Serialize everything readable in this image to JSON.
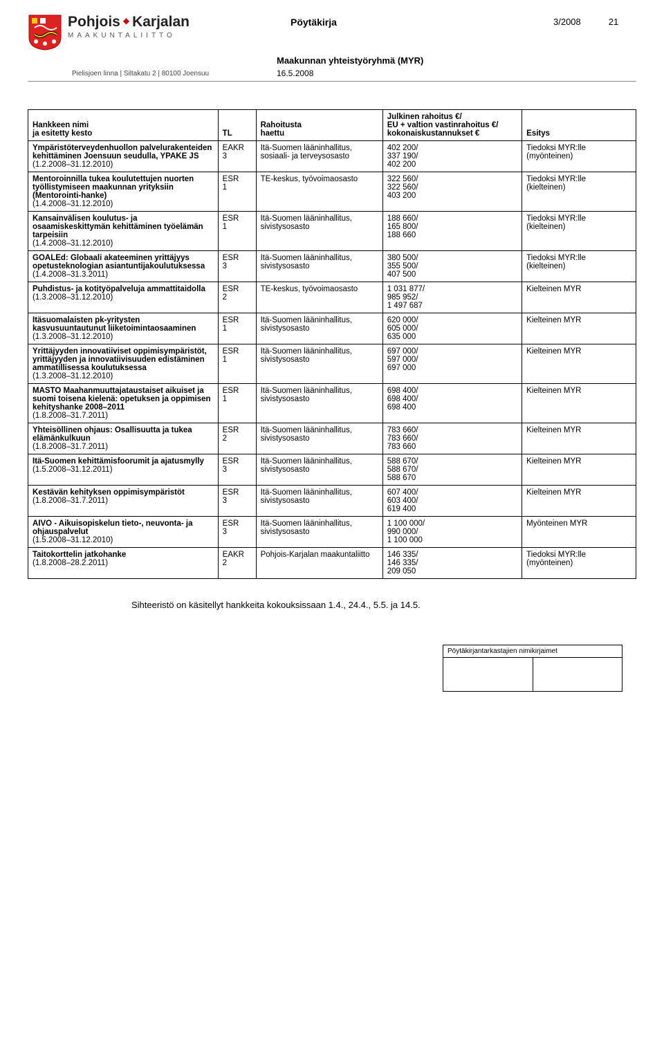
{
  "header": {
    "org_name_1": "Pohjois",
    "org_name_2": "Karjalan",
    "org_sub": "MAAKUNTALIITTO",
    "doc_type": "Pöytäkirja",
    "doc_num": "3/2008",
    "page_num": "21",
    "group": "Maakunnan yhteistyöryhmä (MYR)",
    "address": "Pielisjoen linna  |  Siltakatu 2  |  80100 Joensuu",
    "date": "16.5.2008"
  },
  "table": {
    "headers": {
      "name": "Hankkeen nimi\nja esitetty kesto",
      "tl": "TL",
      "rah": "Rahoitusta\nhaettu",
      "julk": "Julkinen rahoitus €/\nEU + valtion vastinrahoitus €/\nkokonaiskustannukset €",
      "esitys": "Esitys"
    },
    "rows": [
      {
        "name": "Ympäristöterveydenhuollon palvelurakenteiden kehittäminen Joensuun seudulla, YPAKE JS\n(1.2.2008–31.12.2010)",
        "tl": "EAKR\n3",
        "rah": "Itä-Suomen lääninhallitus, sosiaali- ja terveysosasto",
        "julk": "402 200/\n337 190/\n402 200",
        "esitys": "Tiedoksi MYR:lle\n(myönteinen)"
      },
      {
        "name": "Mentoroinnilla tukea koulutettujen nuorten työllistymiseen maakunnan yrityksiin (Mentorointi-hanke)\n(1.4.2008–31.12.2010)",
        "tl": "ESR\n1",
        "rah": "TE-keskus, työvoimaosasto",
        "julk": "322 560/\n322 560/\n403 200",
        "esitys": "Tiedoksi MYR:lle\n(kielteinen)"
      },
      {
        "name": "Kansainvälisen koulutus- ja osaamiskeskittymän kehittäminen työelämän tarpeisiin\n(1.4.2008–31.12.2010)",
        "tl": "ESR\n1",
        "rah": "Itä-Suomen lääninhallitus, sivistysosasto",
        "julk": "188 660/\n165 800/\n188 660",
        "esitys": "Tiedoksi MYR:lle\n(kielteinen)"
      },
      {
        "name": "GOALEd: Globaali akateeminen yrittäjyys opetusteknologian asiantuntijakoulutuksessa\n(1.4.2008–31.3.2011)",
        "tl": "ESR\n3",
        "rah": "Itä-Suomen lääninhallitus, sivistysosasto",
        "julk": "380 500/\n355 500/\n407 500",
        "esitys": "Tiedoksi MYR:lle\n(kielteinen)"
      },
      {
        "name": "Puhdistus- ja kotityöpalveluja ammattitaidolla\n(1.3.2008–31.12.2010)",
        "tl": "ESR\n2",
        "rah": "TE-keskus, työvoimaosasto",
        "julk": "1 031 877/\n985 952/\n1 497 687",
        "esitys": "Kielteinen MYR"
      },
      {
        "name": "Itäsuomalaisten pk-yritysten kasvusuuntautunut liiketoimintaosaaminen\n(1.3.2008–31.12.2010)",
        "tl": "ESR\n1",
        "rah": "Itä-Suomen lääninhallitus, sivistysosasto",
        "julk": "620 000/\n605 000/\n635 000",
        "esitys": "Kielteinen MYR"
      },
      {
        "name": "Yrittäjyyden innovatiiviset oppimisympäristöt, yrittäjyyden ja innovatiivisuuden edistäminen ammatillisessa koulutuksessa\n(1.3.2008–31.12.2010)",
        "tl": "ESR\n1",
        "rah": "Itä-Suomen lääninhallitus, sivistysosasto",
        "julk": "697 000/\n597 000/\n697 000",
        "esitys": "Kielteinen MYR"
      },
      {
        "name": "MASTO Maahanmuuttajataustaiset aikuiset ja suomi toisena kielenä: opetuksen ja oppimisen kehityshanke 2008–2011\n(1.8.2008–31.7.2011)",
        "tl": "ESR\n1",
        "rah": "Itä-Suomen lääninhallitus, sivistysosasto",
        "julk": "698 400/\n698 400/\n698 400",
        "esitys": "Kielteinen MYR"
      },
      {
        "name": "Yhteisöllinen ohjaus: Osallisuutta ja tukea elämänkulkuun\n(1.8.2008–31.7.2011)",
        "tl": "ESR\n2",
        "rah": "Itä-Suomen lääninhallitus, sivistysosasto",
        "julk": "783 660/\n783 660/\n783 660",
        "esitys": "Kielteinen MYR"
      },
      {
        "name": "Itä-Suomen kehittämisfoorumit ja ajatusmylly\n(1.5.2008–31.12.2011)",
        "tl": "ESR\n3",
        "rah": "Itä-Suomen lääninhallitus, sivistysosasto",
        "julk": "588 670/\n588 670/\n588 670",
        "esitys": "Kielteinen MYR"
      },
      {
        "name": "Kestävän kehityksen oppimisympäristöt\n(1.8.2008–31.7.2011)",
        "tl": "ESR\n3",
        "rah": "Itä-Suomen lääninhallitus, sivistysosasto",
        "julk": "607 400/\n603 400/\n619 400",
        "esitys": "Kielteinen MYR"
      },
      {
        "name": "AIVO - Aikuisopiskelun tieto-, neuvonta- ja ohjauspalvelut\n(1.5.2008–31.12.2010)",
        "tl": "ESR\n3",
        "rah": "Itä-Suomen lääninhallitus, sivistysosasto",
        "julk": "1 100 000/\n990 000/\n1 100 000",
        "esitys": "Myönteinen MYR"
      },
      {
        "name": "Taitokorttelin jatkohanke\n\n(1.8.2008–28.2.2011)",
        "tl": "EAKR\n2",
        "rah": "Pohjois-Karjalan maakuntaliitto",
        "julk": "146 335/\n146 335/\n209 050",
        "esitys": "Tiedoksi MYR:lle\n(myönteinen)"
      }
    ]
  },
  "note": "Sihteeristö on käsitellyt hankkeita kokouksissaan 1.4., 24.4., 5.5. ja 14.5.",
  "footer_label": "Pöytäkirjantarkastajien nimikirjaimet"
}
